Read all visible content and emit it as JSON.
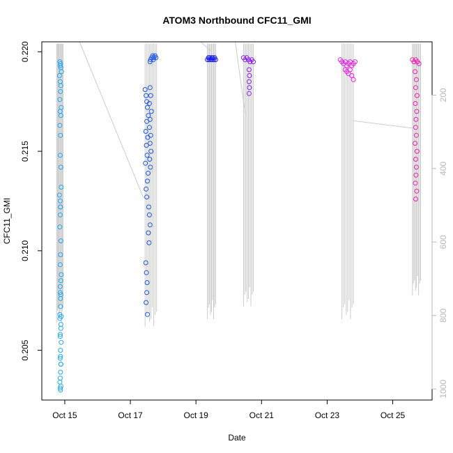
{
  "chart_data": {
    "type": "scatter",
    "title": "ATOM3 Northbound CFC11_GMI",
    "xlabel": "Date",
    "ylabel": "CFC11_GMI",
    "x_ticks": [
      "Oct 15",
      "Oct 17",
      "Oct 19",
      "Oct 21",
      "Oct 23",
      "Oct 25"
    ],
    "x_tick_values": [
      15,
      17,
      19,
      21,
      23,
      25
    ],
    "xlim": [
      14.3,
      26.2
    ],
    "ylim": [
      0.2025,
      0.2205
    ],
    "y_ticks": [
      "0.205",
      "0.210",
      "0.215",
      "0.220"
    ],
    "y_tick_values": [
      0.205,
      0.21,
      0.215,
      0.22
    ],
    "y2_label": "",
    "y2_ticks": [
      "200",
      "400",
      "600",
      "800",
      "1000"
    ],
    "y2_tick_values": [
      200,
      400,
      600,
      800,
      1000
    ],
    "y2lim": [
      1030,
      55
    ],
    "marker_edge_colors": [
      "#1ea8f0",
      "#1a54e8",
      "#1a1ef0",
      "#8a1cf0",
      "#e81ee8",
      "#f01eb0"
    ],
    "pressure_trace_color": "#cccccc",
    "series": [
      {
        "flight": 1,
        "color": "#1ea8f0",
        "x": [
          14.85,
          14.87,
          14.86,
          14.88,
          14.9,
          14.84,
          14.86,
          14.88,
          14.87,
          14.85,
          14.89,
          14.86,
          14.88,
          14.85,
          14.87,
          14.86,
          14.88,
          14.89,
          14.84,
          14.87,
          14.86,
          14.85,
          14.88,
          14.87,
          14.86,
          14.89,
          14.86,
          14.88,
          14.87,
          14.85,
          14.88,
          14.86,
          14.89,
          14.87,
          14.86,
          14.88,
          14.87,
          14.86,
          14.85,
          14.88,
          14.87,
          14.89,
          14.86,
          14.87,
          14.88,
          14.86,
          14.87,
          14.85,
          14.88,
          14.86,
          14.87,
          14.88,
          14.86
        ],
        "y": [
          0.2195,
          0.2194,
          0.2193,
          0.2192,
          0.219,
          0.2188,
          0.2185,
          0.2183,
          0.218,
          0.2176,
          0.2172,
          0.217,
          0.2168,
          0.2163,
          0.2158,
          0.2148,
          0.2142,
          0.2132,
          0.2128,
          0.2122,
          0.2118,
          0.2112,
          0.2105,
          0.2098,
          0.2093,
          0.2088,
          0.2082,
          0.2078,
          0.2072,
          0.2066,
          0.2063,
          0.2057,
          0.2054,
          0.205,
          0.2046,
          0.2043,
          0.2039,
          0.2036,
          0.2034,
          0.2032,
          0.203,
          0.2067,
          0.2125,
          0.2122,
          0.2085,
          0.2079,
          0.2076,
          0.2068,
          0.2061,
          0.2058,
          0.2047,
          0.2043,
          0.2031
        ]
      },
      {
        "flight": 2,
        "color": "#1a54e8",
        "x": [
          17.45,
          17.48,
          17.5,
          17.52,
          17.55,
          17.5,
          17.47,
          17.53,
          17.49,
          17.51,
          17.46,
          17.54,
          17.52,
          17.48,
          17.5,
          17.56,
          17.58,
          17.6,
          17.55,
          17.57,
          17.6,
          17.62,
          17.65,
          17.68,
          17.7,
          17.72,
          17.75,
          17.78,
          17.6,
          17.62,
          17.58,
          17.64,
          17.6,
          17.58,
          17.62,
          17.6,
          17.63,
          17.59,
          17.61,
          17.47,
          17.49,
          17.51,
          17.5,
          17.48,
          17.52
        ],
        "y": [
          0.2181,
          0.2178,
          0.2175,
          0.2172,
          0.2168,
          0.2165,
          0.216,
          0.2157,
          0.2153,
          0.2148,
          0.2144,
          0.2139,
          0.2135,
          0.2131,
          0.2127,
          0.2122,
          0.2118,
          0.2113,
          0.2109,
          0.2104,
          0.2195,
          0.2196,
          0.2197,
          0.2198,
          0.2196,
          0.2197,
          0.2198,
          0.2197,
          0.2182,
          0.2178,
          0.2174,
          0.217,
          0.2166,
          0.2162,
          0.2158,
          0.2154,
          0.215,
          0.2146,
          0.2142,
          0.2094,
          0.2089,
          0.2084,
          0.2079,
          0.2074,
          0.2068
        ]
      },
      {
        "flight": 3,
        "color": "#1a1ef0",
        "x": [
          19.35,
          19.38,
          19.4,
          19.42,
          19.45,
          19.48,
          19.5,
          19.52,
          19.55,
          19.57,
          19.6
        ],
        "y": [
          0.2196,
          0.2197,
          0.2196,
          0.2197,
          0.2196,
          0.2197,
          0.2196,
          0.2197,
          0.2196,
          0.2197,
          0.2196
        ]
      },
      {
        "flight": 4,
        "color": "#8a1cf0",
        "x": [
          20.45,
          20.5,
          20.55,
          20.6,
          20.65,
          20.7,
          20.75,
          20.62,
          20.63,
          20.62,
          20.63,
          20.62
        ],
        "y": [
          0.2197,
          0.2196,
          0.2197,
          0.2196,
          0.2195,
          0.2196,
          0.2195,
          0.2191,
          0.2188,
          0.2185,
          0.2182,
          0.2179
        ]
      },
      {
        "flight": 5,
        "color": "#e81ee8",
        "x": [
          23.4,
          23.45,
          23.5,
          23.55,
          23.6,
          23.65,
          23.7,
          23.75,
          23.8,
          23.85,
          23.55,
          23.6,
          23.7,
          23.65,
          23.75,
          23.8
        ],
        "y": [
          0.2196,
          0.2195,
          0.2194,
          0.2195,
          0.2193,
          0.2194,
          0.2195,
          0.2193,
          0.2194,
          0.2195,
          0.2191,
          0.219,
          0.2191,
          0.2189,
          0.2188,
          0.2186
        ]
      },
      {
        "flight": 6,
        "color": "#f01eb0",
        "x": [
          25.6,
          25.65,
          25.7,
          25.75,
          25.8,
          25.68,
          25.72,
          25.7,
          25.74,
          25.69,
          25.73,
          25.71,
          25.7,
          25.72,
          25.68,
          25.74,
          25.7,
          25.72,
          25.71,
          25.69,
          25.73,
          25.7
        ],
        "y": [
          0.2196,
          0.2195,
          0.2196,
          0.2195,
          0.2194,
          0.219,
          0.2186,
          0.2182,
          0.2178,
          0.2174,
          0.217,
          0.2166,
          0.2162,
          0.2158,
          0.2154,
          0.215,
          0.2146,
          0.2142,
          0.2138,
          0.2134,
          0.213,
          0.2126
        ]
      }
    ],
    "pressure_profiles": [
      {
        "x_start": 14.75,
        "x_end": 14.95,
        "p_top": 60,
        "p_bottom": 820
      },
      {
        "x_start": 17.45,
        "x_end": 17.8,
        "p_top": 60,
        "p_bottom": 830
      },
      {
        "x_start": 19.35,
        "x_end": 19.6,
        "p_top": 60,
        "p_bottom": 810
      },
      {
        "x_start": 20.45,
        "x_end": 20.75,
        "p_top": 60,
        "p_bottom": 775
      },
      {
        "x_start": 23.45,
        "x_end": 23.8,
        "p_top": 60,
        "p_bottom": 810
      },
      {
        "x_start": 25.6,
        "x_end": 25.85,
        "p_top": 60,
        "p_bottom": 745
      }
    ],
    "transit_lines": [
      {
        "x": [
          15.45,
          17.4
        ],
        "p": [
          55,
          480
        ]
      },
      {
        "x": [
          19.15,
          19.45
        ],
        "p": [
          55,
          80
        ]
      },
      {
        "x": [
          20.2,
          20.5
        ],
        "p": [
          55,
          250
        ]
      },
      {
        "x": [
          23.8,
          25.6
        ],
        "p": [
          270,
          290
        ]
      }
    ]
  }
}
